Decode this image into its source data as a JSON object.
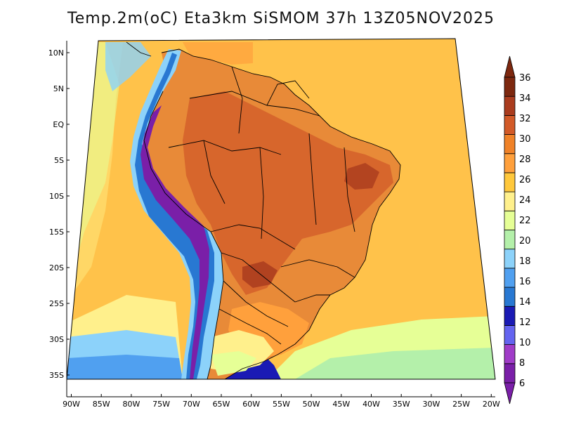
{
  "title": "Temp.2m(oC) Eta3km SiSMOM 37h 13Z05NOV2025",
  "lat_labels": [
    "10N",
    "5N",
    "EQ",
    "5S",
    "10S",
    "15S",
    "20S",
    "25S",
    "30S",
    "35S"
  ],
  "lon_labels": [
    "90W",
    "85W",
    "80W",
    "75W",
    "70W",
    "65W",
    "60W",
    "55W",
    "50W",
    "45W",
    "40W",
    "35W",
    "30W",
    "25W",
    "20W"
  ],
  "colorbar": {
    "labels": [
      "6",
      "8",
      "10",
      "12",
      "14",
      "16",
      "18",
      "20",
      "22",
      "24",
      "26",
      "28",
      "30",
      "32",
      "34",
      "36"
    ],
    "colors": [
      "#7a1fa8",
      "#a03cc8",
      "#6464f0",
      "#1a1ab4",
      "#2878d2",
      "#50a0f0",
      "#8cd2fa",
      "#b4f0aa",
      "#e6ff96",
      "#fff08c",
      "#ffc83c",
      "#ffa03c",
      "#f08228",
      "#d25a28",
      "#aa3c1e",
      "#7d280f"
    ]
  },
  "colors": {
    "ocean_warm": "#ffc24a",
    "ocean_mild": "#ffd766",
    "land_hot": "#e88a38",
    "land_very_hot": "#c85a28",
    "andes_cold": "#7a1fa8",
    "andes_cool": "#2878d2",
    "south_cool": "#8cd2fa",
    "south_mild": "#c8f0a0",
    "border": "#000000"
  }
}
